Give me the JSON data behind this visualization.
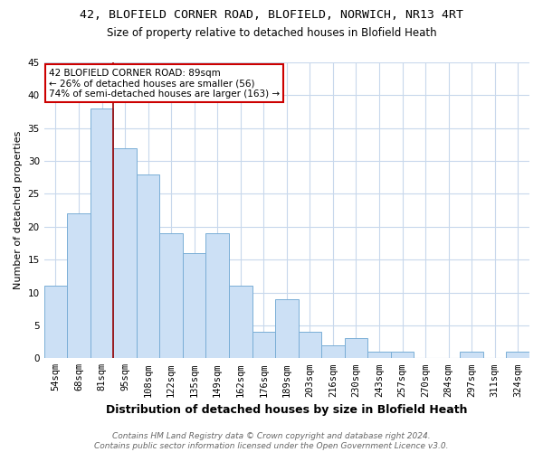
{
  "title1": "42, BLOFIELD CORNER ROAD, BLOFIELD, NORWICH, NR13 4RT",
  "title2": "Size of property relative to detached houses in Blofield Heath",
  "xlabel": "Distribution of detached houses by size in Blofield Heath",
  "ylabel": "Number of detached properties",
  "categories": [
    "54sqm",
    "68sqm",
    "81sqm",
    "95sqm",
    "108sqm",
    "122sqm",
    "135sqm",
    "149sqm",
    "162sqm",
    "176sqm",
    "189sqm",
    "203sqm",
    "216sqm",
    "230sqm",
    "243sqm",
    "257sqm",
    "270sqm",
    "284sqm",
    "297sqm",
    "311sqm",
    "324sqm"
  ],
  "values": [
    11,
    22,
    38,
    32,
    28,
    19,
    16,
    19,
    11,
    4,
    9,
    4,
    2,
    3,
    1,
    1,
    0,
    0,
    1,
    0,
    1
  ],
  "bar_color": "#cce0f5",
  "bar_edge_color": "#7aaed6",
  "vline_pos": 2.5,
  "vline_color": "#990000",
  "annotation_text": "42 BLOFIELD CORNER ROAD: 89sqm\n← 26% of detached houses are smaller (56)\n74% of semi-detached houses are larger (163) →",
  "annotation_box_color": "#ffffff",
  "annotation_box_edge": "#cc0000",
  "ylim": [
    0,
    45
  ],
  "yticks": [
    0,
    5,
    10,
    15,
    20,
    25,
    30,
    35,
    40,
    45
  ],
  "footnote": "Contains HM Land Registry data © Crown copyright and database right 2024.\nContains public sector information licensed under the Open Government Licence v3.0.",
  "grid_color": "#c8d8ec",
  "background_color": "#ffffff",
  "title1_fontsize": 9.5,
  "title2_fontsize": 8.5,
  "xlabel_fontsize": 9,
  "ylabel_fontsize": 8,
  "tick_fontsize": 7.5,
  "annotation_fontsize": 7.5,
  "footnote_fontsize": 6.5
}
